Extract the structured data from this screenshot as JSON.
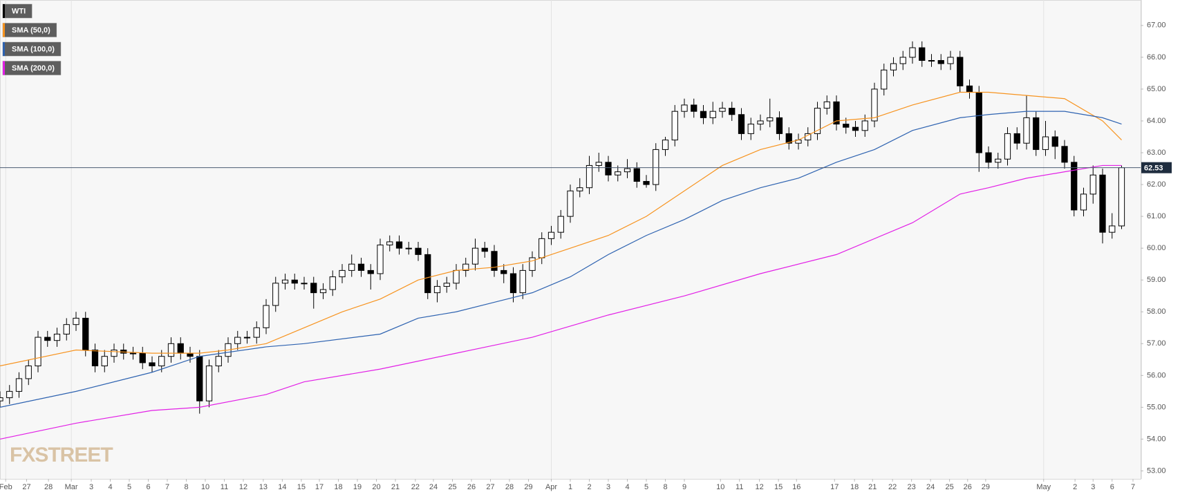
{
  "chart_data": {
    "type": "candlestick",
    "name": "WTI",
    "color": "#000000",
    "watermark": "FXSTREET",
    "x": [
      0,
      0.5,
      1,
      1.5,
      2,
      2.5,
      3,
      3.5,
      4,
      4.5,
      5,
      5.5,
      6,
      6.5,
      7,
      7.5,
      8,
      8.5,
      9,
      9.5,
      10,
      10.5,
      11,
      11.5,
      12,
      12.5,
      13,
      13.5,
      14,
      14.5,
      15,
      15.5,
      16,
      16.5,
      17,
      17.5,
      18,
      18.5,
      19,
      19.5,
      20,
      20.5,
      21,
      21.5,
      22,
      22.5,
      23,
      23.5,
      24,
      24.5,
      25,
      25.5,
      26,
      26.5,
      27,
      27.5,
      28,
      28.5,
      29,
      29.5,
      30,
      30.5,
      31,
      31.5,
      32,
      32.5,
      33,
      33.5,
      34,
      34.5,
      35,
      35.5,
      36,
      36.5,
      37,
      37.5,
      38,
      38.5,
      39,
      39.5,
      40,
      40.5,
      41,
      41.5,
      42,
      42.5,
      43,
      43.5,
      44,
      44.5,
      45,
      45.5,
      46,
      46.5,
      47,
      47.5,
      48,
      48.5,
      49,
      49.5,
      50,
      50.5,
      51,
      51.5,
      52,
      52.5,
      53,
      53.5,
      54,
      54.5,
      55,
      55.5,
      56,
      56.5,
      57,
      57.5,
      58,
      58.5,
      59
    ],
    "open": [
      55.2,
      55.3,
      55.5,
      55.9,
      56.3,
      57.2,
      57.1,
      57.3,
      57.6,
      57.8,
      56.8,
      56.3,
      56.6,
      56.8,
      56.7,
      56.7,
      56.4,
      56.3,
      56.6,
      57.0,
      56.7,
      56.6,
      55.2,
      56.3,
      56.6,
      57.0,
      57.2,
      57.2,
      57.5,
      58.2,
      58.9,
      59.0,
      58.9,
      58.9,
      58.6,
      58.7,
      59.1,
      59.3,
      59.5,
      59.3,
      59.2,
      60.1,
      60.2,
      60.0,
      60.0,
      59.8,
      58.6,
      58.8,
      58.9,
      59.3,
      59.5,
      60.0,
      59.9,
      59.3,
      59.2,
      58.6,
      59.3,
      59.7,
      60.3,
      60.5,
      61.0,
      61.8,
      61.9,
      62.6,
      62.7,
      62.3,
      62.4,
      62.5,
      62.1,
      62.0,
      63.1,
      63.4,
      64.3,
      64.5,
      64.3,
      64.1,
      64.3,
      64.4,
      64.2,
      63.6,
      63.9,
      64.0,
      64.1,
      63.6,
      63.3,
      63.4,
      63.6,
      64.4,
      64.6,
      63.9,
      63.8,
      63.7,
      64.0,
      65.0,
      65.6,
      65.8,
      66.0,
      66.3,
      65.9,
      65.9,
      65.8,
      66.0,
      65.1,
      64.9,
      63.0,
      62.7,
      62.8,
      63.6,
      63.3,
      64.1,
      63.1,
      63.5,
      63.2,
      62.7,
      61.2,
      61.7,
      62.3,
      60.5,
      60.7
    ],
    "high": [
      55.5,
      55.7,
      56.1,
      56.5,
      57.4,
      57.4,
      57.5,
      57.8,
      58.0,
      58.0,
      57.0,
      56.8,
      57.0,
      57.0,
      56.9,
      56.9,
      56.6,
      56.8,
      57.2,
      57.2,
      56.9,
      56.8,
      56.5,
      56.8,
      57.2,
      57.4,
      57.4,
      57.7,
      58.4,
      59.1,
      59.2,
      59.2,
      59.1,
      59.1,
      58.9,
      59.3,
      59.5,
      59.8,
      59.7,
      59.5,
      60.3,
      60.4,
      60.4,
      60.2,
      60.2,
      60.0,
      59.0,
      59.1,
      59.5,
      59.7,
      60.3,
      60.2,
      60.1,
      59.5,
      59.4,
      59.5,
      59.9,
      60.5,
      60.7,
      61.2,
      62.0,
      62.2,
      62.9,
      63.0,
      62.9,
      62.6,
      62.8,
      62.7,
      62.3,
      63.3,
      63.5,
      64.5,
      64.7,
      64.7,
      64.5,
      64.6,
      64.6,
      64.6,
      64.4,
      64.1,
      64.2,
      64.7,
      64.3,
      63.8,
      63.6,
      63.8,
      64.6,
      64.8,
      64.8,
      64.1,
      64.0,
      64.2,
      65.2,
      65.8,
      66.0,
      66.2,
      66.5,
      66.5,
      66.1,
      66.1,
      66.2,
      66.2,
      65.3,
      65.1,
      63.2,
      63.0,
      63.8,
      63.8,
      64.8,
      64.3,
      64.0,
      63.7,
      63.4,
      62.9,
      61.9,
      62.6,
      62.5,
      61.1,
      62.6
    ],
    "low": [
      55.0,
      55.1,
      55.3,
      55.7,
      56.1,
      56.9,
      56.9,
      57.1,
      57.4,
      56.6,
      56.1,
      56.1,
      56.4,
      56.5,
      56.5,
      56.2,
      56.1,
      56.1,
      56.4,
      56.5,
      56.4,
      54.8,
      55.0,
      56.1,
      56.4,
      56.8,
      57.0,
      57.0,
      57.3,
      58.0,
      58.7,
      58.7,
      58.7,
      58.1,
      58.4,
      58.5,
      58.9,
      59.1,
      59.1,
      58.7,
      59.0,
      59.9,
      59.8,
      59.8,
      59.6,
      58.4,
      58.3,
      58.6,
      58.7,
      59.1,
      59.3,
      59.7,
      59.1,
      58.9,
      58.3,
      58.4,
      59.1,
      59.5,
      60.1,
      60.3,
      60.8,
      61.6,
      61.7,
      62.4,
      62.1,
      62.1,
      62.2,
      61.9,
      61.9,
      61.8,
      62.9,
      63.2,
      64.1,
      64.1,
      63.9,
      63.9,
      64.1,
      64.0,
      63.4,
      63.4,
      63.7,
      63.8,
      63.4,
      63.1,
      63.1,
      63.2,
      63.4,
      64.2,
      63.7,
      63.6,
      63.5,
      63.5,
      63.8,
      64.8,
      65.4,
      65.6,
      65.8,
      65.7,
      65.7,
      65.6,
      65.6,
      64.9,
      64.7,
      62.4,
      62.5,
      62.5,
      62.6,
      63.1,
      63.1,
      62.9,
      62.9,
      62.8,
      62.5,
      61.0,
      61.0,
      61.4,
      60.15,
      60.3,
      60.6
    ],
    "close": [
      55.3,
      55.5,
      55.9,
      56.3,
      57.2,
      57.1,
      57.3,
      57.6,
      57.8,
      56.8,
      56.3,
      56.6,
      56.8,
      56.7,
      56.7,
      56.4,
      56.3,
      56.6,
      57.0,
      56.7,
      56.6,
      55.2,
      56.3,
      56.6,
      57.0,
      57.2,
      57.2,
      57.5,
      58.2,
      58.9,
      59.0,
      58.9,
      58.9,
      58.6,
      58.7,
      59.1,
      59.3,
      59.5,
      59.3,
      59.2,
      60.1,
      60.2,
      60.0,
      60.0,
      59.8,
      58.6,
      58.8,
      58.9,
      59.3,
      59.5,
      60.0,
      59.9,
      59.3,
      59.2,
      58.6,
      59.3,
      59.7,
      60.3,
      60.5,
      61.0,
      61.8,
      61.9,
      62.6,
      62.7,
      62.3,
      62.4,
      62.5,
      62.1,
      62.0,
      63.1,
      63.4,
      64.3,
      64.5,
      64.3,
      64.1,
      64.3,
      64.4,
      64.2,
      63.6,
      63.9,
      64.0,
      64.1,
      63.6,
      63.3,
      63.4,
      63.6,
      64.4,
      64.6,
      63.9,
      63.8,
      63.7,
      64.0,
      65.0,
      65.6,
      65.8,
      66.0,
      66.3,
      65.9,
      65.9,
      65.8,
      66.0,
      65.1,
      64.9,
      63.0,
      62.7,
      62.8,
      63.6,
      63.3,
      64.1,
      63.1,
      63.5,
      63.2,
      62.7,
      61.2,
      61.7,
      62.3,
      60.5,
      60.7,
      62.53
    ],
    "series": [
      {
        "name": "SMA (50,0)",
        "color": "#f7931e",
        "x": [
          0,
          4,
          8,
          10.5,
          12,
          14,
          16,
          18,
          20,
          22,
          24,
          26,
          28,
          30,
          32,
          34,
          36,
          38,
          40,
          42,
          44,
          46,
          48,
          50.5,
          52,
          54,
          56,
          58,
          59
        ],
        "values": [
          56.3,
          56.8,
          56.7,
          56.7,
          56.8,
          57.0,
          57.5,
          58.0,
          58.4,
          59.0,
          59.3,
          59.4,
          59.6,
          60.0,
          60.4,
          61.0,
          61.8,
          62.6,
          63.1,
          63.4,
          64.0,
          64.1,
          64.5,
          64.9,
          64.9,
          64.8,
          64.7,
          64.0,
          63.4
        ]
      },
      {
        "name": "SMA (100,0)",
        "color": "#2d62b0",
        "x": [
          0,
          4,
          8,
          10.5,
          14,
          16,
          20,
          22,
          24,
          26,
          28,
          30,
          32,
          34,
          36,
          38,
          40,
          42,
          44,
          46,
          48,
          50.5,
          52,
          54,
          56,
          58,
          59
        ],
        "values": [
          55.0,
          55.5,
          56.1,
          56.6,
          56.9,
          57.0,
          57.3,
          57.8,
          58.0,
          58.3,
          58.6,
          59.1,
          59.8,
          60.4,
          60.9,
          61.5,
          61.9,
          62.2,
          62.7,
          63.1,
          63.7,
          64.1,
          64.2,
          64.3,
          64.3,
          64.1,
          63.9
        ]
      },
      {
        "name": "SMA (200,0)",
        "color": "#e21ee6",
        "x": [
          0,
          4,
          8,
          10.5,
          14,
          16,
          20,
          24,
          28,
          32,
          36,
          40,
          44,
          48,
          50.5,
          52,
          54,
          56,
          58,
          59
        ],
        "values": [
          54.0,
          54.5,
          54.9,
          55.0,
          55.4,
          55.8,
          56.2,
          56.7,
          57.2,
          57.9,
          58.5,
          59.2,
          59.8,
          60.8,
          61.7,
          61.9,
          62.2,
          62.4,
          62.6,
          62.6
        ]
      }
    ],
    "last_price": 62.53,
    "xlim": [
      0,
      60
    ],
    "ylim": [
      52.75,
      67.8
    ],
    "yticks": [
      {
        "value": 53,
        "label": "53.00"
      },
      {
        "value": 54,
        "label": "54.00"
      },
      {
        "value": 55,
        "label": "55.00"
      },
      {
        "value": 56,
        "label": "56.00"
      },
      {
        "value": 57,
        "label": "57.00"
      },
      {
        "value": 58,
        "label": "58.00"
      },
      {
        "value": 59,
        "label": "59.00"
      },
      {
        "value": 60,
        "label": "60.00"
      },
      {
        "value": 61,
        "label": "61.00"
      },
      {
        "value": 62,
        "label": "62.00"
      },
      {
        "value": 63,
        "label": "63.00"
      },
      {
        "value": 64,
        "label": "64.00"
      },
      {
        "value": 65,
        "label": "65.00"
      },
      {
        "value": 66,
        "label": "66.00"
      },
      {
        "value": 67,
        "label": "67.00"
      }
    ],
    "xticks": [
      {
        "value": 0.3,
        "label": "Feb"
      },
      {
        "value": 1.4,
        "label": "27"
      },
      {
        "value": 2.55,
        "label": "28"
      },
      {
        "value": 3.75,
        "label": "Mar"
      },
      {
        "value": 4.8,
        "label": "3"
      },
      {
        "value": 5.8,
        "label": "4"
      },
      {
        "value": 6.8,
        "label": "5"
      },
      {
        "value": 7.8,
        "label": "6"
      },
      {
        "value": 8.8,
        "label": "7"
      },
      {
        "value": 9.8,
        "label": "8"
      },
      {
        "value": 10.8,
        "label": "10"
      },
      {
        "value": 11.8,
        "label": "11"
      },
      {
        "value": 12.8,
        "label": "12"
      },
      {
        "value": 13.85,
        "label": "13"
      },
      {
        "value": 14.85,
        "label": "14"
      },
      {
        "value": 15.85,
        "label": "15"
      },
      {
        "value": 16.8,
        "label": "17"
      },
      {
        "value": 17.8,
        "label": "18"
      },
      {
        "value": 18.8,
        "label": "19"
      },
      {
        "value": 19.8,
        "label": "20"
      },
      {
        "value": 20.8,
        "label": "21"
      },
      {
        "value": 21.85,
        "label": "22"
      },
      {
        "value": 22.8,
        "label": "24"
      },
      {
        "value": 23.8,
        "label": "25"
      },
      {
        "value": 24.8,
        "label": "26"
      },
      {
        "value": 25.8,
        "label": "27"
      },
      {
        "value": 26.8,
        "label": "28"
      },
      {
        "value": 27.8,
        "label": "29"
      },
      {
        "value": 29.0,
        "label": "Apr"
      },
      {
        "value": 30.0,
        "label": "1"
      },
      {
        "value": 31.0,
        "label": "2"
      },
      {
        "value": 32.0,
        "label": "3"
      },
      {
        "value": 33.0,
        "label": "4"
      },
      {
        "value": 34.0,
        "label": "5"
      },
      {
        "value": 35.0,
        "label": "8"
      },
      {
        "value": 36.0,
        "label": "9"
      },
      {
        "value": 37.9,
        "label": "10"
      },
      {
        "value": 38.9,
        "label": "11"
      },
      {
        "value": 39.95,
        "label": "12"
      },
      {
        "value": 40.95,
        "label": "15"
      },
      {
        "value": 41.9,
        "label": "16"
      },
      {
        "value": 43.9,
        "label": "17"
      },
      {
        "value": 44.95,
        "label": "18"
      },
      {
        "value": 45.9,
        "label": "21"
      },
      {
        "value": 46.95,
        "label": "22"
      },
      {
        "value": 47.95,
        "label": "23"
      },
      {
        "value": 48.95,
        "label": "24"
      },
      {
        "value": 49.95,
        "label": "25"
      },
      {
        "value": 50.9,
        "label": "26"
      },
      {
        "value": 51.85,
        "label": "29"
      },
      {
        "value": 54.9,
        "label": "May"
      },
      {
        "value": 56.55,
        "label": "2"
      },
      {
        "value": 57.5,
        "label": "3"
      },
      {
        "value": 58.5,
        "label": "6"
      },
      {
        "value": 59.6,
        "label": "7"
      }
    ],
    "grid": true
  }
}
